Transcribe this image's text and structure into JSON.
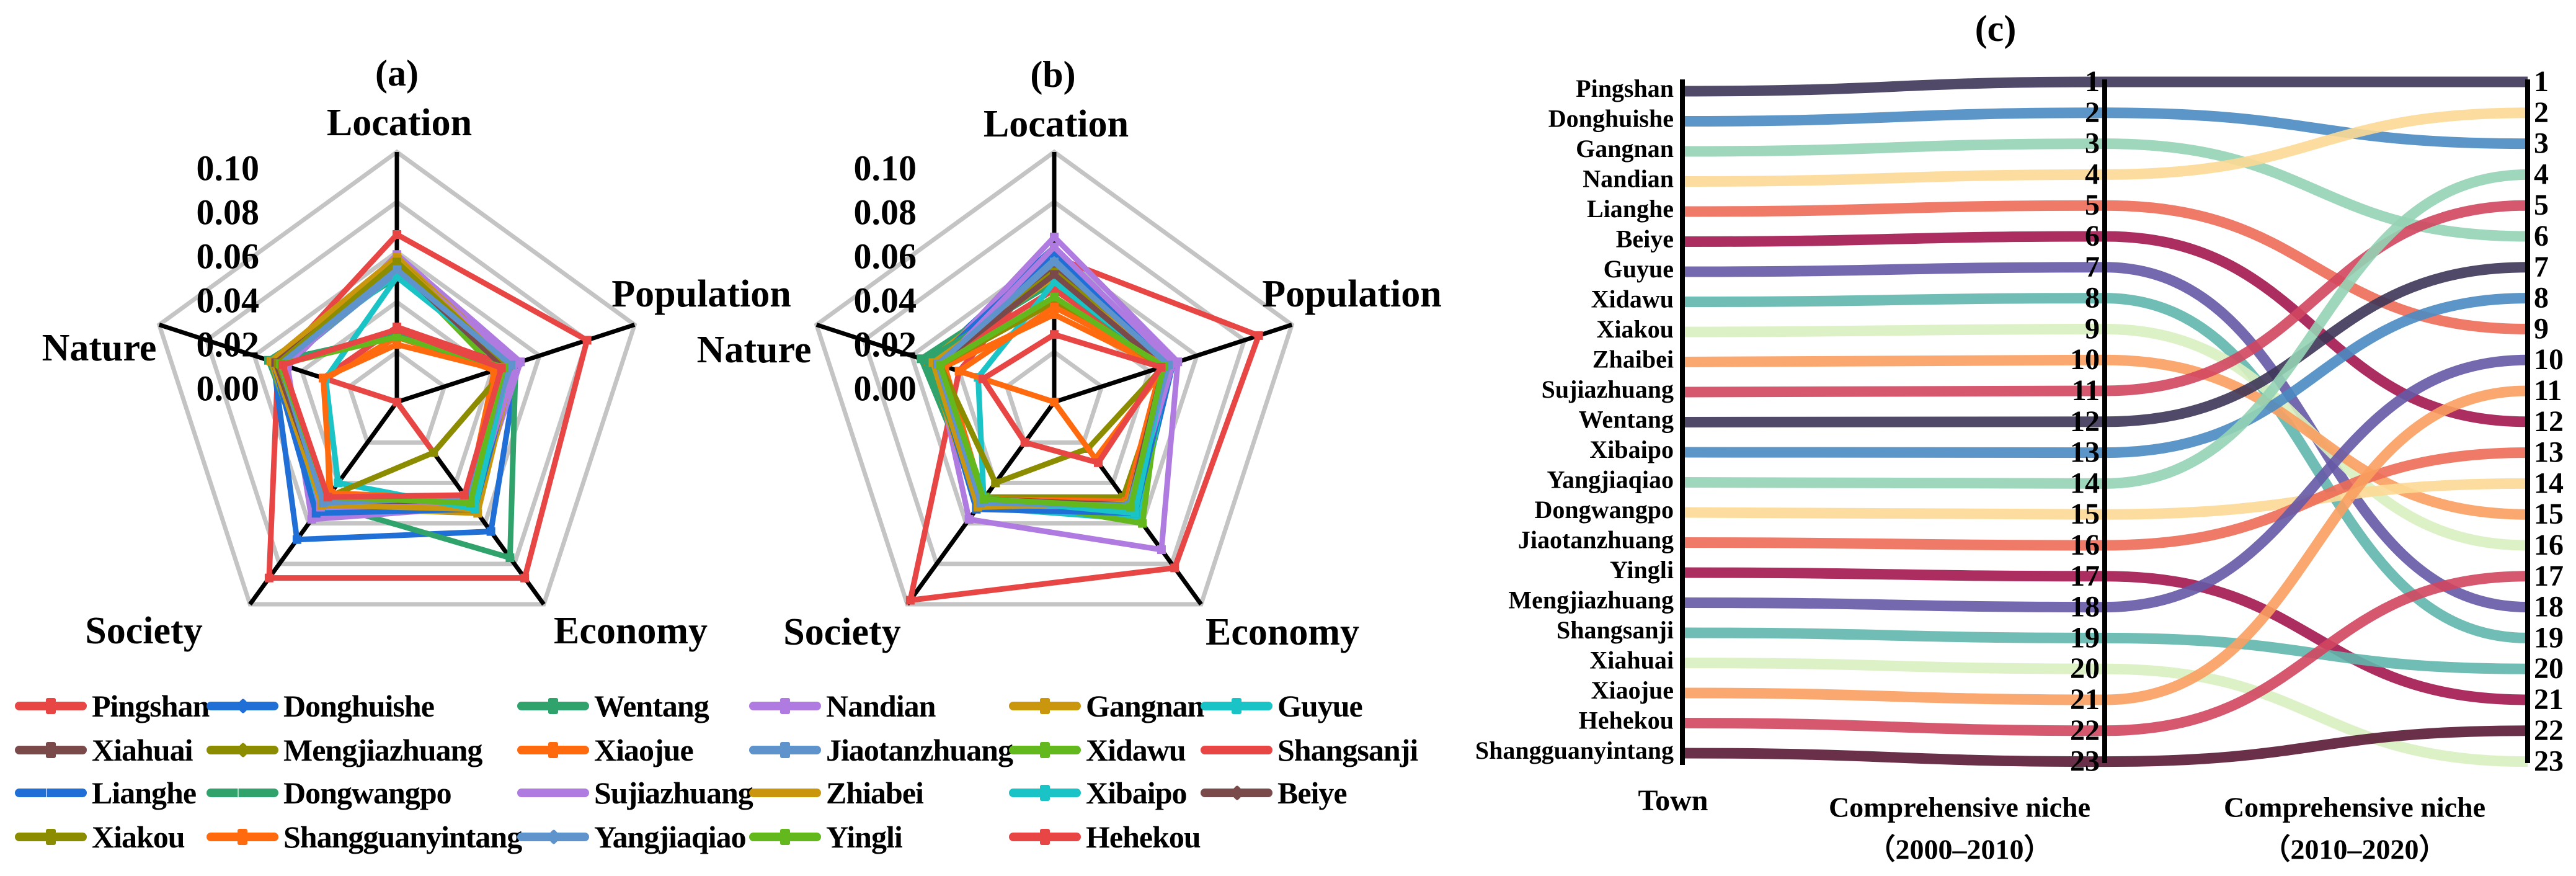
{
  "figure": {
    "panel_a_title": "(a)",
    "panel_b_title": "(b)",
    "panel_c_title": "(c)"
  },
  "chart_data": [
    {
      "type": "radar",
      "title": "(a)",
      "axes": [
        "Location",
        "Population",
        "Economy",
        "Society",
        "Nature"
      ],
      "rlim": [
        0.0,
        0.1
      ],
      "ticks": [
        "0.10",
        "0.08",
        "0.06",
        "0.04",
        "0.02",
        "0.00"
      ],
      "grid": true,
      "legend_position": "bottom",
      "series": [
        {
          "name": "Pingshan",
          "color": "#e84545",
          "values": [
            0.067,
            0.08,
            0.087,
            0.087,
            0.05
          ]
        },
        {
          "name": "Donghuishe",
          "color": "#1f6fd6",
          "values": [
            0.055,
            0.051,
            0.064,
            0.068,
            0.052
          ]
        },
        {
          "name": "Wentang",
          "color": "#2fa36b",
          "values": [
            0.05,
            0.05,
            0.077,
            0.05,
            0.054
          ]
        },
        {
          "name": "Nandian",
          "color": "#b07be0",
          "values": [
            0.059,
            0.052,
            0.052,
            0.058,
            0.046
          ]
        },
        {
          "name": "Gangnan",
          "color": "#c9960e",
          "values": [
            0.058,
            0.049,
            0.055,
            0.052,
            0.053
          ]
        },
        {
          "name": "Guyue",
          "color": "#19c3c6",
          "values": [
            0.051,
            0.048,
            0.053,
            0.054,
            0.05
          ]
        },
        {
          "name": "Xiahuai",
          "color": "#7a4a4a",
          "values": [
            0.055,
            0.047,
            0.05,
            0.05,
            0.051
          ]
        },
        {
          "name": "Mengjiazhuang",
          "color": "#8c8c00",
          "values": [
            0.057,
            0.048,
            0.05,
            0.047,
            0.051
          ]
        },
        {
          "name": "Xiaojue",
          "color": "#ff6a0f",
          "values": [
            0.026,
            0.041,
            0.048,
            0.046,
            0.03
          ]
        },
        {
          "name": "Jiaotanzhuang",
          "color": "#5f93cc",
          "values": [
            0.052,
            0.047,
            0.048,
            0.051,
            0.048
          ]
        },
        {
          "name": "Xidawu",
          "color": "#63b81e",
          "values": [
            0.054,
            0.042,
            0.05,
            0.048,
            0.048
          ]
        },
        {
          "name": "Shangsanji",
          "color": "#e84545",
          "values": [
            0.03,
            0.047,
            0.025,
            0.0,
            0.031
          ]
        },
        {
          "name": "Lianghe",
          "color": "#1f6fd6",
          "values": [
            0.055,
            0.049,
            0.053,
            0.055,
            0.052
          ]
        },
        {
          "name": "Dongwangpo",
          "color": "#2fa36b",
          "values": [
            0.027,
            0.042,
            0.052,
            0.047,
            0.052
          ]
        },
        {
          "name": "Sujiazhuang",
          "color": "#b07be0",
          "values": [
            0.056,
            0.05,
            0.051,
            0.052,
            0.047
          ]
        },
        {
          "name": "Zhiabei",
          "color": "#c9960e",
          "values": [
            0.057,
            0.047,
            0.053,
            0.051,
            0.052
          ]
        },
        {
          "name": "Xibaipo",
          "color": "#19c3c6",
          "values": [
            0.05,
            0.047,
            0.053,
            0.04,
            0.03
          ]
        },
        {
          "name": "Beiye",
          "color": "#7a4a4a",
          "values": [
            0.054,
            0.045,
            0.049,
            0.049,
            0.051
          ]
        },
        {
          "name": "Xiakou",
          "color": "#8c8c00",
          "values": [
            0.056,
            0.047,
            0.025,
            0.047,
            0.05
          ]
        },
        {
          "name": "Shangguanyintang",
          "color": "#ff6a0f",
          "values": [
            0.023,
            0.042,
            0.048,
            0.045,
            0.031
          ]
        },
        {
          "name": "Yangjiaqiao",
          "color": "#5f93cc",
          "values": [
            0.053,
            0.048,
            0.047,
            0.05,
            0.049
          ]
        },
        {
          "name": "Yingli",
          "color": "#63b81e",
          "values": [
            0.026,
            0.045,
            0.05,
            0.047,
            0.049
          ]
        },
        {
          "name": "Hehekou",
          "color": "#e84545",
          "values": [
            0.029,
            0.044,
            0.046,
            0.047,
            0.048
          ]
        }
      ]
    },
    {
      "type": "radar",
      "title": "(b)",
      "axes": [
        "Location",
        "Population",
        "Economy",
        "Society",
        "Nature"
      ],
      "rlim": [
        0.0,
        0.1
      ],
      "ticks": [
        "0.10",
        "0.08",
        "0.06",
        "0.04",
        "0.02",
        "0.00"
      ],
      "grid": true,
      "legend_position": "bottom",
      "series": [
        {
          "name": "Pingshan",
          "color": "#e84545",
          "values": [
            0.058,
            0.086,
            0.082,
            0.098,
            0.04
          ]
        },
        {
          "name": "Donghuishe",
          "color": "#1f6fd6",
          "values": [
            0.062,
            0.05,
            0.056,
            0.052,
            0.052
          ]
        },
        {
          "name": "Wentang",
          "color": "#2fa36b",
          "values": [
            0.052,
            0.048,
            0.052,
            0.05,
            0.056
          ]
        },
        {
          "name": "Nandian",
          "color": "#b07be0",
          "values": [
            0.066,
            0.052,
            0.073,
            0.058,
            0.05
          ]
        },
        {
          "name": "Gangnan",
          "color": "#c9960e",
          "values": [
            0.055,
            0.049,
            0.053,
            0.052,
            0.053
          ]
        },
        {
          "name": "Guyue",
          "color": "#19c3c6",
          "values": [
            0.057,
            0.048,
            0.058,
            0.052,
            0.05
          ]
        },
        {
          "name": "Xiahuai",
          "color": "#7a4a4a",
          "values": [
            0.054,
            0.047,
            0.05,
            0.049,
            0.051
          ]
        },
        {
          "name": "Mengjiazhuang",
          "color": "#8c8c00",
          "values": [
            0.052,
            0.048,
            0.047,
            0.047,
            0.05
          ]
        },
        {
          "name": "Xiaojue",
          "color": "#ff6a0f",
          "values": [
            0.035,
            0.045,
            0.049,
            0.048,
            0.046
          ]
        },
        {
          "name": "Jiaotanzhuang",
          "color": "#5f93cc",
          "values": [
            0.058,
            0.049,
            0.054,
            0.052,
            0.05
          ]
        },
        {
          "name": "Xidawu",
          "color": "#63b81e",
          "values": [
            0.04,
            0.046,
            0.06,
            0.047,
            0.049
          ]
        },
        {
          "name": "Shangsanji",
          "color": "#e84545",
          "values": [
            0.045,
            0.047,
            0.05,
            0.05,
            0.05
          ]
        },
        {
          "name": "Lianghe",
          "color": "#1f6fd6",
          "values": [
            0.06,
            0.049,
            0.055,
            0.053,
            0.051
          ]
        },
        {
          "name": "Dongwangpo",
          "color": "#2fa36b",
          "values": [
            0.048,
            0.046,
            0.051,
            0.049,
            0.054
          ]
        },
        {
          "name": "Sujiazhuang",
          "color": "#b07be0",
          "values": [
            0.062,
            0.05,
            0.052,
            0.051,
            0.048
          ]
        },
        {
          "name": "Zhiabei",
          "color": "#c9960e",
          "values": [
            0.05,
            0.048,
            0.05,
            0.052,
            0.051
          ]
        },
        {
          "name": "Xibaipo",
          "color": "#19c3c6",
          "values": [
            0.048,
            0.047,
            0.055,
            0.048,
            0.032
          ]
        },
        {
          "name": "Beiye",
          "color": "#7a4a4a",
          "values": [
            0.051,
            0.046,
            0.051,
            0.048,
            0.049
          ]
        },
        {
          "name": "Xiakou",
          "color": "#8c8c00",
          "values": [
            0.04,
            0.046,
            0.023,
            0.04,
            0.048
          ]
        },
        {
          "name": "Shangguanyintang",
          "color": "#ff6a0f",
          "values": [
            0.038,
            0.047,
            0.028,
            0.0,
            0.04
          ]
        },
        {
          "name": "Yangjiaqiao",
          "color": "#5f93cc",
          "values": [
            0.056,
            0.048,
            0.051,
            0.05,
            0.049
          ]
        },
        {
          "name": "Yingli",
          "color": "#63b81e",
          "values": [
            0.042,
            0.046,
            0.052,
            0.048,
            0.048
          ]
        },
        {
          "name": "Hehekou",
          "color": "#e84545",
          "values": [
            0.027,
            0.045,
            0.03,
            0.02,
            0.03
          ]
        }
      ]
    },
    {
      "type": "bump",
      "title": "(c)",
      "xlabel_town": "Town",
      "columns": [
        {
          "label": "Comprehensive niche",
          "period": "（2000–2010）"
        },
        {
          "label": "Comprehensive niche",
          "period": "（2010–2020）"
        }
      ],
      "ranks": [
        "1",
        "2",
        "3",
        "4",
        "5",
        "6",
        "7",
        "8",
        "9",
        "10",
        "11",
        "12",
        "13",
        "14",
        "15",
        "16",
        "17",
        "18",
        "19",
        "20",
        "21",
        "22",
        "23"
      ],
      "series": [
        {
          "name": "Pingshan",
          "color": "#3d3556",
          "rank_2000_2010": 1,
          "rank_2010_2020": 1
        },
        {
          "name": "Donghuishe",
          "color": "#4a8bc2",
          "rank_2000_2010": 2,
          "rank_2010_2020": 3
        },
        {
          "name": "Gangnan",
          "color": "#93d3b4",
          "rank_2000_2010": 3,
          "rank_2010_2020": 6
        },
        {
          "name": "Nandian",
          "color": "#fcd995",
          "rank_2000_2010": 4,
          "rank_2010_2020": 2
        },
        {
          "name": "Lianghe",
          "color": "#ec6b56",
          "rank_2000_2010": 5,
          "rank_2010_2020": 9
        },
        {
          "name": "Beiye",
          "color": "#a3174f",
          "rank_2000_2010": 6,
          "rank_2010_2020": 12
        },
        {
          "name": "Guyue",
          "color": "#6559a6",
          "rank_2000_2010": 7,
          "rank_2010_2020": 18
        },
        {
          "name": "Xidawu",
          "color": "#5fb6ac",
          "rank_2000_2010": 8,
          "rank_2010_2020": 19
        },
        {
          "name": "Xiakou",
          "color": "#d9f0c0",
          "rank_2000_2010": 9,
          "rank_2010_2020": 16
        },
        {
          "name": "Zhaibei",
          "color": "#f99e5f",
          "rank_2000_2010": 10,
          "rank_2010_2020": 15
        },
        {
          "name": "Sujiazhuang",
          "color": "#d1465f",
          "rank_2000_2010": 11,
          "rank_2010_2020": 5
        },
        {
          "name": "Wentang",
          "color": "#3d3556",
          "rank_2000_2010": 12,
          "rank_2010_2020": 7
        },
        {
          "name": "Xibaipo",
          "color": "#4a8bc2",
          "rank_2000_2010": 13,
          "rank_2010_2020": 8
        },
        {
          "name": "Yangjiaqiao",
          "color": "#93d3b4",
          "rank_2000_2010": 14,
          "rank_2010_2020": 4
        },
        {
          "name": "Dongwangpo",
          "color": "#fcd995",
          "rank_2000_2010": 15,
          "rank_2010_2020": 14
        },
        {
          "name": "Jiaotanzhuang",
          "color": "#ec6b56",
          "rank_2000_2010": 16,
          "rank_2010_2020": 13
        },
        {
          "name": "Yingli",
          "color": "#a3174f",
          "rank_2000_2010": 17,
          "rank_2010_2020": 21
        },
        {
          "name": "Mengjiazhuang",
          "color": "#6559a6",
          "rank_2000_2010": 18,
          "rank_2010_2020": 10
        },
        {
          "name": "Shangsanji",
          "color": "#5fb6ac",
          "rank_2000_2010": 19,
          "rank_2010_2020": 20
        },
        {
          "name": "Xiahuai",
          "color": "#d9f0c0",
          "rank_2000_2010": 20,
          "rank_2010_2020": 23
        },
        {
          "name": "Xiaojue",
          "color": "#f99e5f",
          "rank_2000_2010": 21,
          "rank_2010_2020": 11
        },
        {
          "name": "Hehekou",
          "color": "#d1465f",
          "rank_2000_2010": 22,
          "rank_2010_2020": 17
        },
        {
          "name": "Shangguanyintang",
          "color": "#5a1a35",
          "rank_2000_2010": 23,
          "rank_2010_2020": 22
        }
      ]
    }
  ],
  "legend": {
    "items": [
      {
        "label": "Pingshan",
        "color": "#e84545",
        "marker": "square"
      },
      {
        "label": "Donghuishe",
        "color": "#1f6fd6",
        "marker": "diamond"
      },
      {
        "label": "Wentang",
        "color": "#2fa36b",
        "marker": "triangle"
      },
      {
        "label": "Nandian",
        "color": "#b07be0",
        "marker": "tri-down"
      },
      {
        "label": "Gangnan",
        "color": "#c9960e",
        "marker": "triangle"
      },
      {
        "label": "Guyue",
        "color": "#19c3c6",
        "marker": "tri-left"
      },
      {
        "label": "Xiahuai",
        "color": "#7a4a4a",
        "marker": "tri-right"
      },
      {
        "label": "Mengjiazhuang",
        "color": "#8c8c00",
        "marker": "diamond"
      },
      {
        "label": "Xiaojue",
        "color": "#ff6a0f",
        "marker": "star"
      },
      {
        "label": "Jiaotanzhuang",
        "color": "#5f93cc",
        "marker": "square"
      },
      {
        "label": "Xidawu",
        "color": "#63b81e",
        "marker": "tri-right"
      },
      {
        "label": "Shangsanji",
        "color": "#e84545",
        "marker": "none"
      },
      {
        "label": "Lianghe",
        "color": "#1f6fd6",
        "marker": "x"
      },
      {
        "label": "Dongwangpo",
        "color": "#2fa36b",
        "marker": "x"
      },
      {
        "label": "Sujiazhuang",
        "color": "#b07be0",
        "marker": "none"
      },
      {
        "label": "Zhiabei",
        "color": "#c9960e",
        "marker": "none"
      },
      {
        "label": "Xibaipo",
        "color": "#19c3c6",
        "marker": "square"
      },
      {
        "label": "Beiye",
        "color": "#7a4a4a",
        "marker": "diamond"
      },
      {
        "label": "Xiakou",
        "color": "#8c8c00",
        "marker": "triangle"
      },
      {
        "label": "Shangguanyintang",
        "color": "#ff6a0f",
        "marker": "tri-down"
      },
      {
        "label": "Yangjiaqiao",
        "color": "#5f93cc",
        "marker": "diamond"
      },
      {
        "label": "Yingli",
        "color": "#63b81e",
        "marker": "tri-left"
      },
      {
        "label": "Hehekou",
        "color": "#e84545",
        "marker": "tri-right"
      }
    ]
  }
}
